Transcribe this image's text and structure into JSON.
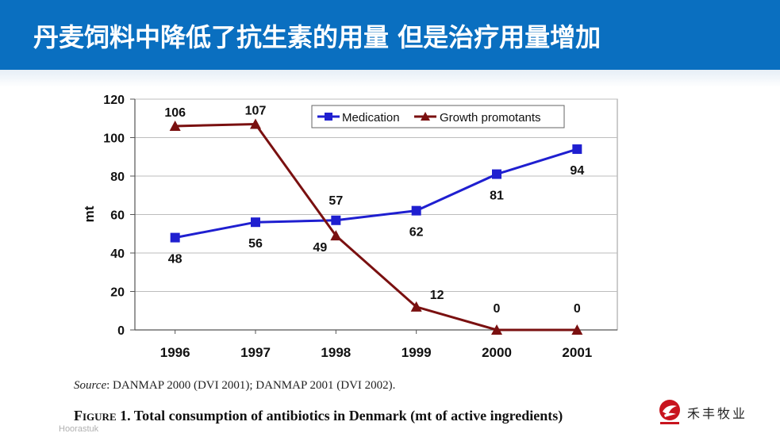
{
  "slide": {
    "title": "丹麦饲料中降低了抗生素的用量  但是治疗用量增加",
    "source_label": "Source",
    "source_text": ": DANMAP 2000 (DVI 2001); DANMAP 2001 (DVI 2002).",
    "figure_label": "Figure 1.",
    "figure_caption": " Total consumption of antibiotics in Denmark (mt of active ingredients)",
    "watermark": "Hoorastuk",
    "logo_text": "禾丰牧业",
    "header_color": "#0a6fc0"
  },
  "chart_data": {
    "type": "line",
    "categories": [
      "1996",
      "1997",
      "1998",
      "1999",
      "2000",
      "2001"
    ],
    "ylabel": "mt",
    "ylim": [
      0,
      120
    ],
    "yticks": [
      "0",
      "20",
      "40",
      "60",
      "80",
      "100",
      "120"
    ],
    "grid": true,
    "legend_position": "top-right",
    "series": [
      {
        "name": "Medication",
        "values": [
          48,
          56,
          57,
          62,
          81,
          94
        ],
        "labels": [
          "48",
          "56",
          "57",
          "62",
          "81",
          "94"
        ],
        "color": "#1f1fd0",
        "marker": "square"
      },
      {
        "name": "Growth promotants",
        "values": [
          106,
          107,
          49,
          12,
          0,
          0
        ],
        "labels": [
          "106",
          "107",
          "49",
          "12",
          "0",
          "0"
        ],
        "color": "#7a1010",
        "marker": "triangle"
      }
    ]
  }
}
